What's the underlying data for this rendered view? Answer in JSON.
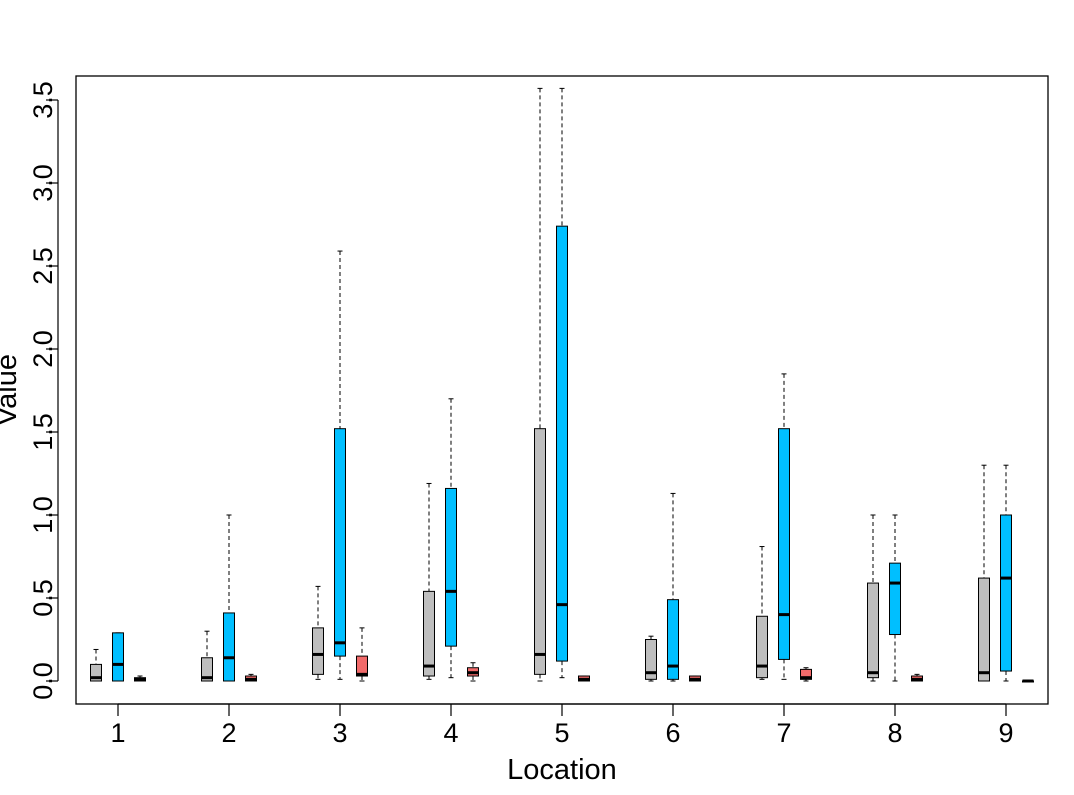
{
  "chart_data": {
    "type": "boxplot",
    "title": "",
    "xlabel": "Location",
    "ylabel": "Value",
    "categories": [
      "1",
      "2",
      "3",
      "4",
      "5",
      "6",
      "7",
      "8",
      "9"
    ],
    "ylim": [
      -0.15,
      3.65
    ],
    "yticks": [
      0.0,
      0.5,
      1.0,
      1.5,
      2.0,
      2.5,
      3.0,
      3.5
    ],
    "ytick_labels": [
      "0.0",
      "0.5",
      "1.0",
      "1.5",
      "2.0",
      "2.5",
      "3.0",
      "3.5"
    ],
    "grid": false,
    "legend": "none",
    "series": [
      {
        "color": "#bebebe",
        "boxes": [
          {
            "min": 0.0,
            "q1": 0.0,
            "median": 0.02,
            "q3": 0.1,
            "max": 0.19
          },
          {
            "min": 0.0,
            "q1": 0.0,
            "median": 0.02,
            "q3": 0.14,
            "max": 0.3
          },
          {
            "min": 0.01,
            "q1": 0.04,
            "median": 0.16,
            "q3": 0.32,
            "max": 0.57
          },
          {
            "min": 0.01,
            "q1": 0.03,
            "median": 0.09,
            "q3": 0.54,
            "max": 1.19
          },
          {
            "min": 0.0,
            "q1": 0.04,
            "median": 0.16,
            "q3": 1.52,
            "max": 3.57
          },
          {
            "min": 0.0,
            "q1": 0.01,
            "median": 0.05,
            "q3": 0.25,
            "max": 0.27
          },
          {
            "min": 0.01,
            "q1": 0.02,
            "median": 0.09,
            "q3": 0.39,
            "max": 0.81
          },
          {
            "min": 0.0,
            "q1": 0.02,
            "median": 0.05,
            "q3": 0.59,
            "max": 1.0
          },
          {
            "min": 0.0,
            "q1": 0.0,
            "median": 0.05,
            "q3": 0.62,
            "max": 1.3
          }
        ]
      },
      {
        "color": "#00bfff",
        "boxes": [
          {
            "min": 0.0,
            "q1": 0.0,
            "median": 0.1,
            "q3": 0.29,
            "max": 0.29
          },
          {
            "min": 0.0,
            "q1": 0.0,
            "median": 0.14,
            "q3": 0.41,
            "max": 1.0
          },
          {
            "min": 0.01,
            "q1": 0.15,
            "median": 0.23,
            "q3": 1.52,
            "max": 2.59
          },
          {
            "min": 0.02,
            "q1": 0.21,
            "median": 0.54,
            "q3": 1.16,
            "max": 1.7
          },
          {
            "min": 0.02,
            "q1": 0.12,
            "median": 0.46,
            "q3": 2.74,
            "max": 3.57
          },
          {
            "min": 0.0,
            "q1": 0.01,
            "median": 0.09,
            "q3": 0.49,
            "max": 1.13
          },
          {
            "min": 0.01,
            "q1": 0.13,
            "median": 0.4,
            "q3": 1.52,
            "max": 1.85
          },
          {
            "min": 0.0,
            "q1": 0.28,
            "median": 0.59,
            "q3": 0.71,
            "max": 1.0
          },
          {
            "min": 0.0,
            "q1": 0.06,
            "median": 0.62,
            "q3": 1.0,
            "max": 1.3
          }
        ]
      },
      {
        "color": "#f26b6b",
        "boxes": [
          {
            "min": 0.0,
            "q1": 0.0,
            "median": 0.01,
            "q3": 0.02,
            "max": 0.03
          },
          {
            "min": 0.0,
            "q1": 0.0,
            "median": 0.01,
            "q3": 0.03,
            "max": 0.04
          },
          {
            "min": 0.0,
            "q1": 0.03,
            "median": 0.04,
            "q3": 0.15,
            "max": 0.32
          },
          {
            "min": 0.0,
            "q1": 0.03,
            "median": 0.05,
            "q3": 0.08,
            "max": 0.11
          },
          {
            "min": 0.0,
            "q1": 0.0,
            "median": 0.01,
            "q3": 0.03,
            "max": 0.03
          },
          {
            "min": 0.0,
            "q1": 0.0,
            "median": 0.01,
            "q3": 0.03,
            "max": 0.03
          },
          {
            "min": 0.0,
            "q1": 0.01,
            "median": 0.02,
            "q3": 0.07,
            "max": 0.08
          },
          {
            "min": 0.0,
            "q1": 0.0,
            "median": 0.01,
            "q3": 0.03,
            "max": 0.04
          },
          {
            "min": 0.0,
            "q1": 0.0,
            "median": 0.0,
            "q3": 0.0,
            "max": 0.0
          }
        ]
      }
    ]
  }
}
